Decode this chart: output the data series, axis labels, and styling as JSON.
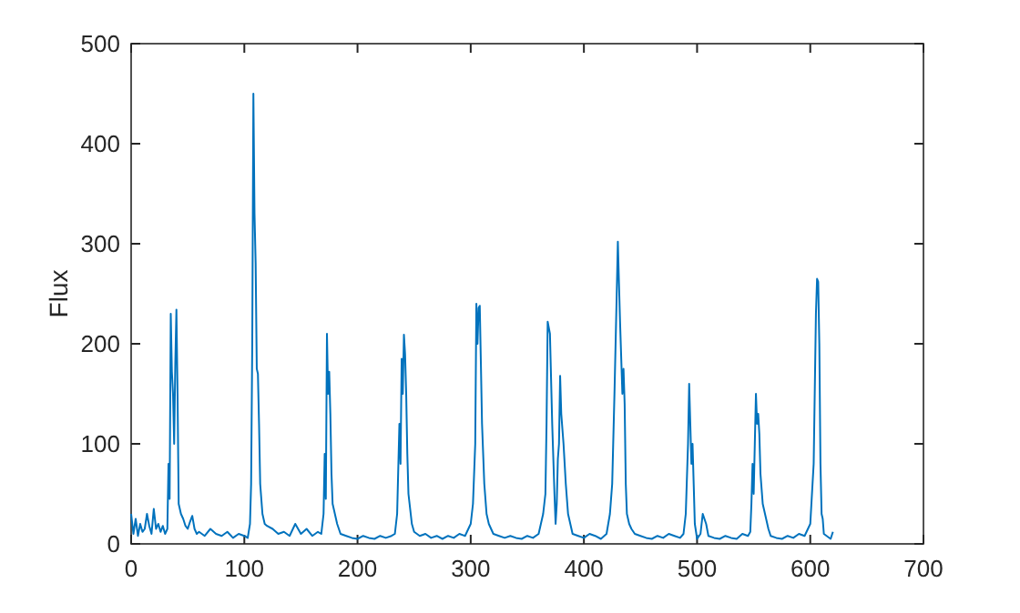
{
  "chart_data": {
    "type": "line",
    "ylabel": "Flux",
    "xlim": [
      0,
      700
    ],
    "ylim": [
      0,
      500
    ],
    "xticks": [
      0,
      100,
      200,
      300,
      400,
      500,
      600,
      700
    ],
    "yticks": [
      0,
      100,
      200,
      300,
      400,
      500
    ],
    "grid": false,
    "series": [
      {
        "color": "#0072bd",
        "x": [
          0,
          2,
          4,
          6,
          8,
          10,
          12,
          14,
          16,
          18,
          20,
          22,
          24,
          26,
          28,
          30,
          32,
          33,
          34,
          35,
          36,
          37,
          38,
          39,
          40,
          41,
          42,
          44,
          46,
          48,
          50,
          52,
          54,
          56,
          58,
          60,
          65,
          70,
          75,
          80,
          85,
          90,
          95,
          100,
          103,
          105,
          106,
          107,
          108,
          109,
          110,
          111,
          112,
          113,
          114,
          116,
          118,
          120,
          125,
          130,
          135,
          140,
          145,
          150,
          155,
          160,
          165,
          168,
          170,
          171,
          172,
          173,
          174,
          175,
          176,
          177,
          178,
          180,
          182,
          185,
          190,
          195,
          200,
          205,
          210,
          215,
          220,
          225,
          230,
          233,
          235,
          237,
          238,
          239,
          240,
          241,
          242,
          243,
          244,
          245,
          246,
          248,
          250,
          255,
          260,
          265,
          270,
          275,
          280,
          285,
          290,
          295,
          300,
          302,
          304,
          305,
          306,
          307,
          308,
          309,
          310,
          312,
          314,
          316,
          320,
          325,
          330,
          335,
          340,
          345,
          350,
          355,
          360,
          362,
          364,
          366,
          367,
          368,
          370,
          372,
          374,
          375,
          376,
          377,
          378,
          379,
          380,
          382,
          384,
          386,
          388,
          390,
          395,
          400,
          405,
          410,
          415,
          420,
          423,
          425,
          427,
          429,
          430,
          431,
          432,
          434,
          435,
          436,
          437,
          438,
          440,
          442,
          445,
          450,
          455,
          460,
          465,
          470,
          475,
          480,
          485,
          488,
          490,
          492,
          493,
          494,
          495,
          496,
          497,
          498,
          500,
          503,
          505,
          508,
          510,
          515,
          520,
          525,
          530,
          535,
          540,
          545,
          547,
          548,
          549,
          550,
          551,
          552,
          553,
          554,
          555,
          556,
          558,
          560,
          563,
          565,
          570,
          575,
          580,
          585,
          590,
          595,
          600,
          603,
          605,
          606,
          607,
          608,
          609,
          610,
          611,
          612,
          618,
          620
        ],
        "values": [
          30,
          10,
          25,
          8,
          20,
          12,
          15,
          30,
          18,
          10,
          35,
          15,
          20,
          12,
          18,
          10,
          15,
          80,
          45,
          230,
          172,
          150,
          100,
          180,
          234,
          150,
          40,
          30,
          25,
          18,
          15,
          22,
          28,
          15,
          10,
          12,
          8,
          15,
          10,
          8,
          12,
          6,
          10,
          8,
          6,
          20,
          60,
          200,
          450,
          330,
          280,
          175,
          170,
          120,
          60,
          30,
          20,
          18,
          15,
          10,
          12,
          8,
          20,
          10,
          15,
          8,
          12,
          10,
          30,
          90,
          45,
          210,
          150,
          172,
          130,
          70,
          40,
          30,
          20,
          10,
          8,
          6,
          5,
          8,
          6,
          5,
          8,
          6,
          8,
          10,
          30,
          120,
          80,
          185,
          150,
          209,
          190,
          150,
          90,
          50,
          40,
          20,
          12,
          8,
          10,
          6,
          8,
          5,
          8,
          6,
          10,
          8,
          20,
          40,
          100,
          240,
          200,
          236,
          238,
          180,
          120,
          60,
          30,
          20,
          10,
          8,
          6,
          8,
          6,
          5,
          8,
          6,
          10,
          20,
          30,
          50,
          120,
          222,
          210,
          120,
          50,
          20,
          40,
          85,
          100,
          168,
          130,
          100,
          60,
          30,
          20,
          10,
          8,
          6,
          10,
          8,
          5,
          10,
          30,
          60,
          150,
          250,
          302,
          260,
          220,
          150,
          175,
          140,
          60,
          30,
          20,
          15,
          10,
          8,
          6,
          5,
          8,
          6,
          10,
          8,
          6,
          10,
          30,
          100,
          160,
          120,
          80,
          100,
          60,
          20,
          5,
          10,
          30,
          20,
          8,
          6,
          5,
          8,
          6,
          5,
          10,
          8,
          12,
          40,
          80,
          50,
          100,
          150,
          120,
          130,
          110,
          70,
          40,
          30,
          15,
          8,
          6,
          5,
          8,
          6,
          10,
          8,
          20,
          80,
          230,
          265,
          262,
          200,
          80,
          30,
          25,
          10,
          5,
          12
        ]
      }
    ]
  }
}
